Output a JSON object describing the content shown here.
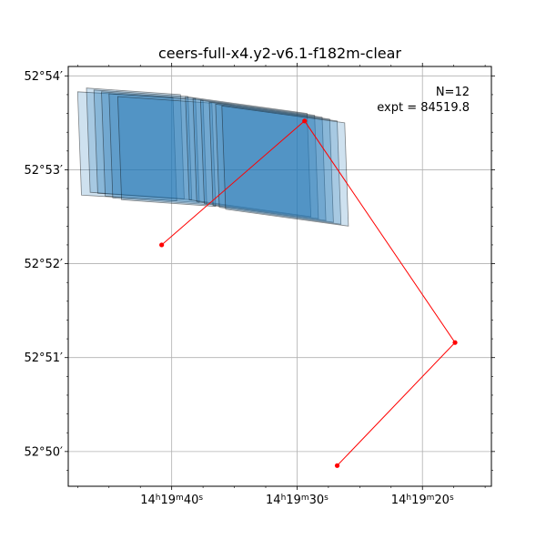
{
  "chart_data": {
    "type": "scatter",
    "title": "ceers-full-x4.y2-v6.1-f182m-clear",
    "xlabel": "",
    "ylabel": "",
    "grid": true,
    "x_axis": {
      "unit": "RA",
      "direction": "decreasing to the right",
      "range_sec": [
        48.25,
        14.5
      ],
      "ticks": [
        {
          "sec": 40,
          "h": "14",
          "m": "19",
          "s": "40"
        },
        {
          "sec": 30,
          "h": "14",
          "m": "19",
          "s": "30"
        },
        {
          "sec": 20,
          "h": "14",
          "m": "19",
          "s": "20"
        }
      ]
    },
    "y_axis": {
      "unit": "Dec",
      "range_arcmin": [
        49.63,
        54.1
      ],
      "ticks": [
        {
          "arcmin": 50,
          "label": "52°50′"
        },
        {
          "arcmin": 51,
          "label": "52°51′"
        },
        {
          "arcmin": 52,
          "label": "52°52′"
        },
        {
          "arcmin": 53,
          "label": "52°53′"
        },
        {
          "arcmin": 54,
          "label": "52°54′"
        }
      ]
    },
    "annotation": {
      "line1": "N=12",
      "line2": "expt = 84519.8"
    },
    "footprint_color": "#1f77b4",
    "footprints": [
      [
        [
          47.5,
          53.83
        ],
        [
          39.9,
          53.77
        ],
        [
          39.6,
          52.67
        ],
        [
          47.2,
          52.73
        ]
      ],
      [
        [
          46.8,
          53.87
        ],
        [
          39.3,
          53.8
        ],
        [
          39.0,
          52.69
        ],
        [
          46.5,
          52.76
        ]
      ],
      [
        [
          46.2,
          53.85
        ],
        [
          38.7,
          53.78
        ],
        [
          38.4,
          52.68
        ],
        [
          45.9,
          52.75
        ]
      ],
      [
        [
          45.6,
          53.83
        ],
        [
          38.1,
          53.76
        ],
        [
          37.8,
          52.65
        ],
        [
          45.3,
          52.72
        ]
      ],
      [
        [
          45.0,
          53.81
        ],
        [
          37.5,
          53.74
        ],
        [
          37.2,
          52.63
        ],
        [
          44.7,
          52.7
        ]
      ],
      [
        [
          44.3,
          53.78
        ],
        [
          36.8,
          53.71
        ],
        [
          36.5,
          52.61
        ],
        [
          44.0,
          52.68
        ]
      ],
      [
        [
          38.9,
          53.78
        ],
        [
          29.2,
          53.6
        ],
        [
          28.9,
          52.5
        ],
        [
          38.6,
          52.68
        ]
      ],
      [
        [
          38.3,
          53.76
        ],
        [
          28.6,
          53.58
        ],
        [
          28.3,
          52.48
        ],
        [
          38.0,
          52.66
        ]
      ],
      [
        [
          37.7,
          53.74
        ],
        [
          28.0,
          53.56
        ],
        [
          27.7,
          52.46
        ],
        [
          37.4,
          52.64
        ]
      ],
      [
        [
          37.0,
          53.72
        ],
        [
          27.4,
          53.54
        ],
        [
          27.1,
          52.44
        ],
        [
          36.7,
          52.62
        ]
      ],
      [
        [
          36.5,
          53.7
        ],
        [
          26.8,
          53.52
        ],
        [
          26.5,
          52.42
        ],
        [
          36.2,
          52.6
        ]
      ],
      [
        [
          36.0,
          53.68
        ],
        [
          26.2,
          53.5
        ],
        [
          25.9,
          52.4
        ],
        [
          35.7,
          52.58
        ]
      ]
    ],
    "path_color": "#ff0000",
    "path": [
      {
        "ra_sec": 40.8,
        "dec_arcmin": 52.2
      },
      {
        "ra_sec": 29.4,
        "dec_arcmin": 53.52
      },
      {
        "ra_sec": 17.4,
        "dec_arcmin": 51.16
      },
      {
        "ra_sec": 26.8,
        "dec_arcmin": 49.85
      }
    ]
  }
}
